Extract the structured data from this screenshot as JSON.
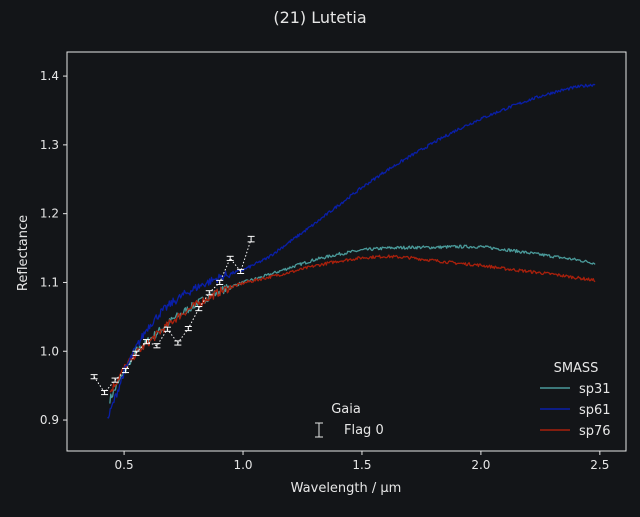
{
  "chart_data": {
    "type": "line",
    "title": "(21) Lutetia",
    "xlabel": "Wavelength / μm",
    "ylabel": "Reflectance",
    "xlim": [
      0.26,
      2.61
    ],
    "ylim": [
      0.855,
      1.435
    ],
    "xticks": [
      0.5,
      1.0,
      1.5,
      2.0,
      2.5
    ],
    "xtick_labels": [
      "0.5",
      "1.0",
      "1.5",
      "2.0",
      "2.5"
    ],
    "yticks": [
      0.9,
      1.0,
      1.1,
      1.2,
      1.3,
      1.4
    ],
    "ytick_labels": [
      "0.9",
      "1.0",
      "1.1",
      "1.2",
      "1.3",
      "1.4"
    ],
    "grid": false,
    "colors": {
      "background": "#131518",
      "foreground": "#e6e6e6",
      "sp31": "#4a9a9a",
      "sp61": "#0a1fa8",
      "sp76": "#a8200c",
      "gaia": "#ffffff"
    },
    "legend_smass": {
      "title": "SMASS",
      "placement": "bottom-right",
      "entries": [
        "sp31",
        "sp61",
        "sp76"
      ]
    },
    "legend_gaia": {
      "title": "Gaia",
      "placement": "bottom-center",
      "entries": [
        "Flag 0"
      ]
    },
    "series": [
      {
        "name": "sp31",
        "x": [
          0.44,
          0.5,
          0.55,
          0.6,
          0.65,
          0.7,
          0.75,
          0.8,
          0.85,
          0.9,
          0.95,
          1.0,
          1.1,
          1.2,
          1.3,
          1.4,
          1.5,
          1.6,
          1.7,
          1.8,
          1.9,
          2.0,
          2.1,
          2.2,
          2.3,
          2.4,
          2.48
        ],
        "y": [
          0.93,
          0.97,
          1.0,
          1.015,
          1.03,
          1.045,
          1.057,
          1.068,
          1.078,
          1.087,
          1.094,
          1.1,
          1.11,
          1.122,
          1.133,
          1.141,
          1.147,
          1.15,
          1.151,
          1.151,
          1.152,
          1.152,
          1.148,
          1.143,
          1.138,
          1.133,
          1.128
        ]
      },
      {
        "name": "sp61",
        "x": [
          0.43,
          0.46,
          0.5,
          0.55,
          0.6,
          0.65,
          0.7,
          0.75,
          0.8,
          0.85,
          0.9,
          0.95,
          1.0,
          1.1,
          1.2,
          1.3,
          1.4,
          1.5,
          1.6,
          1.7,
          1.8,
          1.9,
          2.0,
          2.1,
          2.2,
          2.3,
          2.4,
          2.48
        ],
        "y": [
          0.9,
          0.93,
          0.97,
          1.005,
          1.035,
          1.055,
          1.07,
          1.082,
          1.092,
          1.1,
          1.107,
          1.113,
          1.118,
          1.135,
          1.16,
          1.185,
          1.212,
          1.238,
          1.262,
          1.283,
          1.303,
          1.322,
          1.338,
          1.352,
          1.365,
          1.376,
          1.384,
          1.388
        ]
      },
      {
        "name": "sp76",
        "x": [
          0.44,
          0.5,
          0.55,
          0.6,
          0.65,
          0.7,
          0.75,
          0.8,
          0.85,
          0.9,
          0.95,
          1.0,
          1.1,
          1.2,
          1.3,
          1.4,
          1.5,
          1.6,
          1.7,
          1.8,
          1.9,
          2.0,
          2.1,
          2.2,
          2.3,
          2.4,
          2.48
        ],
        "y": [
          0.94,
          0.975,
          0.997,
          1.012,
          1.028,
          1.043,
          1.056,
          1.067,
          1.077,
          1.086,
          1.093,
          1.099,
          1.107,
          1.115,
          1.124,
          1.131,
          1.136,
          1.138,
          1.136,
          1.132,
          1.128,
          1.125,
          1.12,
          1.116,
          1.112,
          1.107,
          1.103
        ]
      }
    ],
    "gaia": {
      "name": "Flag 0",
      "x": [
        0.374,
        0.418,
        0.462,
        0.506,
        0.55,
        0.594,
        0.638,
        0.682,
        0.726,
        0.77,
        0.814,
        0.858,
        0.902,
        0.946,
        0.99,
        1.034
      ],
      "y": [
        0.963,
        0.94,
        0.958,
        0.972,
        0.997,
        1.014,
        1.008,
        1.032,
        1.012,
        1.033,
        1.062,
        1.085,
        1.1,
        1.135,
        1.116,
        1.163
      ],
      "err": [
        0.003,
        0.003,
        0.003,
        0.003,
        0.003,
        0.003,
        0.003,
        0.003,
        0.003,
        0.003,
        0.003,
        0.003,
        0.003,
        0.003,
        0.003,
        0.004
      ]
    }
  }
}
